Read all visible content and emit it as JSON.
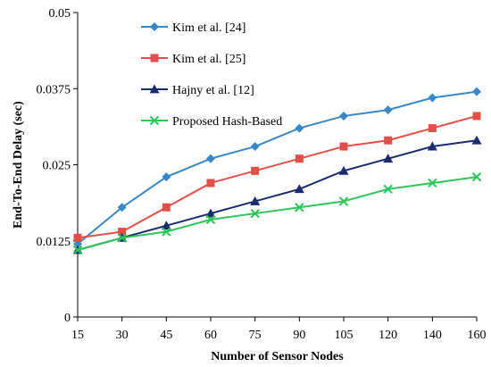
{
  "chart_data": {
    "type": "line",
    "xlabel": "Number  of Sensor Nodes",
    "ylabel": "End-To-End  Delay (sec)",
    "x": [
      "15",
      "30",
      "45",
      "60",
      "75",
      "90",
      "105",
      "120",
      "140",
      "160"
    ],
    "ylim": [
      0,
      0.05
    ],
    "yticks": [
      "0",
      "0.0125",
      "0.025",
      "0.0375",
      "0.05"
    ],
    "legend_position": "top-left",
    "grid": false,
    "series": [
      {
        "name": "Kim et al. [24]",
        "color": "#3a87c8",
        "marker": "diamond",
        "values": [
          0.012,
          0.018,
          0.023,
          0.026,
          0.028,
          0.031,
          0.033,
          0.034,
          0.036,
          0.037
        ]
      },
      {
        "name": "Kim et al. [25]",
        "color": "#e0504a",
        "marker": "square",
        "values": [
          0.013,
          0.014,
          0.018,
          0.022,
          0.024,
          0.026,
          0.028,
          0.029,
          0.031,
          0.033
        ]
      },
      {
        "name": "Hajny et al. [12]",
        "color": "#1c2a6e",
        "marker": "triangle",
        "values": [
          0.011,
          0.013,
          0.015,
          0.017,
          0.019,
          0.021,
          0.024,
          0.026,
          0.028,
          0.029
        ]
      },
      {
        "name": "Proposed Hash-Based",
        "color": "#2ec55a",
        "marker": "x",
        "values": [
          0.011,
          0.013,
          0.014,
          0.016,
          0.017,
          0.018,
          0.019,
          0.021,
          0.022,
          0.023
        ]
      }
    ]
  }
}
